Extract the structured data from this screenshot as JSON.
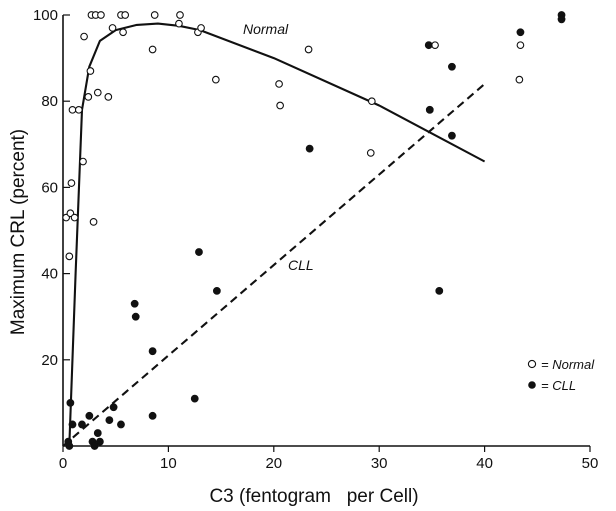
{
  "chart_data": {
    "type": "scatter",
    "title": "",
    "xlabel": "C3 (fentogram   per Cell)",
    "ylabel": "Maximum CRL (percent)",
    "xlim": [
      0,
      50
    ],
    "ylim": [
      0,
      100
    ],
    "x_ticks": [
      0,
      10,
      20,
      30,
      40,
      50
    ],
    "y_ticks": [
      20,
      40,
      60,
      80,
      100
    ],
    "grid": false,
    "legend": {
      "placement": "lower-right",
      "entries": [
        {
          "marker": "open-circle",
          "label": "= Normal"
        },
        {
          "marker": "filled-circle",
          "label": "= CLL"
        }
      ]
    },
    "annotations": [
      "Normal",
      "CLL"
    ],
    "series": [
      {
        "name": "Normal",
        "marker": "open-circle",
        "points": [
          [
            0.3,
            53
          ],
          [
            0.6,
            44
          ],
          [
            0.7,
            54
          ],
          [
            0.8,
            61
          ],
          [
            0.9,
            78
          ],
          [
            1.1,
            53
          ],
          [
            1.5,
            78
          ],
          [
            1.9,
            66
          ],
          [
            2.0,
            95
          ],
          [
            2.4,
            81
          ],
          [
            2.6,
            87
          ],
          [
            2.7,
            100
          ],
          [
            2.9,
            52
          ],
          [
            3.1,
            100
          ],
          [
            3.3,
            82
          ],
          [
            3.6,
            100
          ],
          [
            4.3,
            81
          ],
          [
            4.7,
            97
          ],
          [
            5.5,
            100
          ],
          [
            5.7,
            96
          ],
          [
            5.9,
            100
          ],
          [
            8.5,
            92
          ],
          [
            8.7,
            100
          ],
          [
            11.0,
            98
          ],
          [
            11.1,
            100
          ],
          [
            12.8,
            96
          ],
          [
            13.1,
            97
          ],
          [
            14.5,
            85
          ],
          [
            20.5,
            84
          ],
          [
            20.6,
            79
          ],
          [
            23.3,
            92
          ],
          [
            29.2,
            68
          ],
          [
            29.3,
            80
          ],
          [
            35.3,
            93
          ],
          [
            43.3,
            85
          ],
          [
            43.4,
            93
          ]
        ]
      },
      {
        "name": "CLL",
        "marker": "filled-circle",
        "points": [
          [
            0.5,
            1
          ],
          [
            0.6,
            0
          ],
          [
            0.7,
            10
          ],
          [
            0.9,
            5
          ],
          [
            1.8,
            5
          ],
          [
            2.5,
            7
          ],
          [
            2.8,
            1
          ],
          [
            3.0,
            0
          ],
          [
            3.3,
            3
          ],
          [
            3.5,
            1
          ],
          [
            4.4,
            6
          ],
          [
            4.8,
            9
          ],
          [
            5.5,
            5
          ],
          [
            6.8,
            33
          ],
          [
            6.9,
            30
          ],
          [
            8.5,
            22
          ],
          [
            8.5,
            7
          ],
          [
            12.5,
            11
          ],
          [
            12.9,
            45
          ],
          [
            14.6,
            36
          ],
          [
            23.4,
            69
          ],
          [
            34.7,
            93
          ],
          [
            34.8,
            78
          ],
          [
            35.7,
            36
          ],
          [
            36.9,
            88
          ],
          [
            36.9,
            72
          ],
          [
            43.4,
            96
          ],
          [
            47.3,
            100
          ],
          [
            47.3,
            99
          ]
        ]
      }
    ],
    "fit_lines": [
      {
        "label": "Normal",
        "style": "solid",
        "points": [
          [
            0.6,
            0
          ],
          [
            1.2,
            40
          ],
          [
            1.8,
            78
          ],
          [
            2.5,
            88
          ],
          [
            3.5,
            94
          ],
          [
            5.0,
            96.5
          ],
          [
            7.0,
            97.7
          ],
          [
            9.0,
            98
          ],
          [
            11.0,
            97.5
          ],
          [
            13.0,
            96.5
          ],
          [
            20.0,
            90
          ],
          [
            30.0,
            79
          ],
          [
            40.0,
            66
          ]
        ]
      },
      {
        "label": "CLL",
        "style": "dashed",
        "points": [
          [
            0,
            0
          ],
          [
            40.0,
            84
          ]
        ]
      }
    ]
  }
}
